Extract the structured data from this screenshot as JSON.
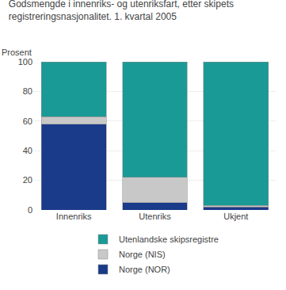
{
  "chart_data": {
    "type": "bar",
    "stacked": true,
    "title": "Godsmengde i innenriks- og utenriksfart, etter skipets\nregistreringsnasjonalitet. 1. kvartal 2005",
    "ylabel": "Prosent",
    "categories": [
      "Innenriks",
      "Utenriks",
      "Ukjent"
    ],
    "series": [
      {
        "name": "Norge (NOR)",
        "color": "#1a3a8a",
        "values": [
          58,
          5,
          2
        ]
      },
      {
        "name": "Norge (NIS)",
        "color": "#c8c8c8",
        "values": [
          5,
          17,
          1
        ]
      },
      {
        "name": "Utenlandske skipsregistre",
        "color": "#1a9a96",
        "values": [
          37,
          78,
          97
        ]
      }
    ],
    "ylim": [
      0,
      100
    ],
    "yticks": [
      0,
      20,
      40,
      60,
      80,
      100
    ],
    "grid": true,
    "legend": "bottom"
  }
}
